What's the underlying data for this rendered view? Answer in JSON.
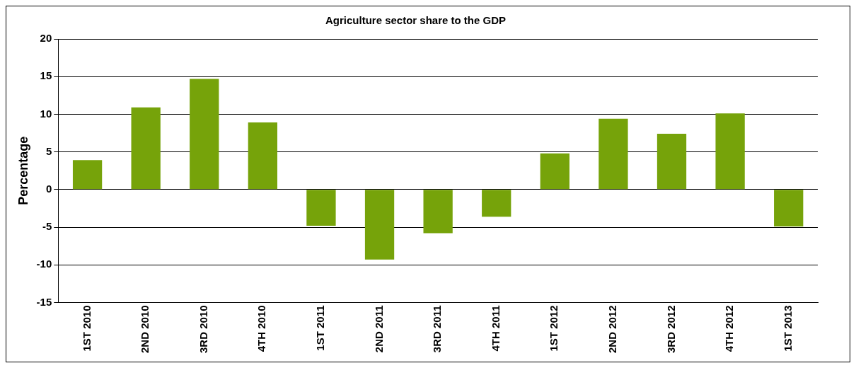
{
  "chart_data": {
    "type": "bar",
    "title": "Agriculture sector share to the GDP",
    "ylabel": "Percentage",
    "categories": [
      "1ST 2010",
      "2ND 2010",
      "3RD 2010",
      "4TH 2010",
      "1ST 2011",
      "2ND 2011",
      "3RD 2011",
      "4TH 2011",
      "1ST 2012",
      "2ND 2012",
      "3RD 2012",
      "4TH 2012",
      "1ST 2013"
    ],
    "values": [
      3.9,
      10.9,
      14.7,
      8.9,
      -4.8,
      -9.3,
      -5.8,
      -3.6,
      4.8,
      9.4,
      7.4,
      10.1,
      -4.9
    ],
    "color": "#76a30a",
    "ylim": [
      -15,
      20
    ],
    "yticks": [
      -15,
      -10,
      -5,
      0,
      5,
      10,
      15,
      20
    ],
    "grid": "y",
    "legend": false
  }
}
